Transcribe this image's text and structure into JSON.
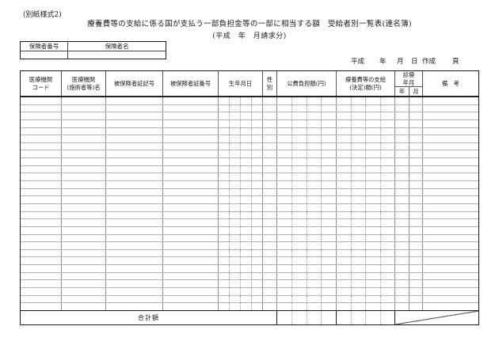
{
  "page": {
    "form_label": "(別紙様式2)",
    "title": "療養費等の支給に係る国が支払う一部負担金等の一部に相当する額　受給者別一覧表(連名簿)",
    "subtitle": "(平成　年　月請求分)"
  },
  "insurer_box": {
    "number_label": "保険者番号",
    "name_label": "保険者名",
    "number_value": "",
    "name_value": ""
  },
  "date_line": {
    "era": "平成",
    "year": "年",
    "month": "月",
    "day": "日",
    "created": "作成",
    "page": "頁"
  },
  "table": {
    "headers": [
      "医療機関\nコード",
      "医療機関\n(施術者等)名",
      "被保険者証記号",
      "被保険者証番号",
      "生年月日",
      "性\n別",
      "公費負担額(円)",
      "療養費等の支給\n(決定)額(円)",
      "診療\n年月",
      "備　考"
    ],
    "exam_sub_headers": {
      "year": "年",
      "month": "月"
    },
    "body_row_count": 28,
    "total_row": {
      "label": "合計額"
    }
  }
}
